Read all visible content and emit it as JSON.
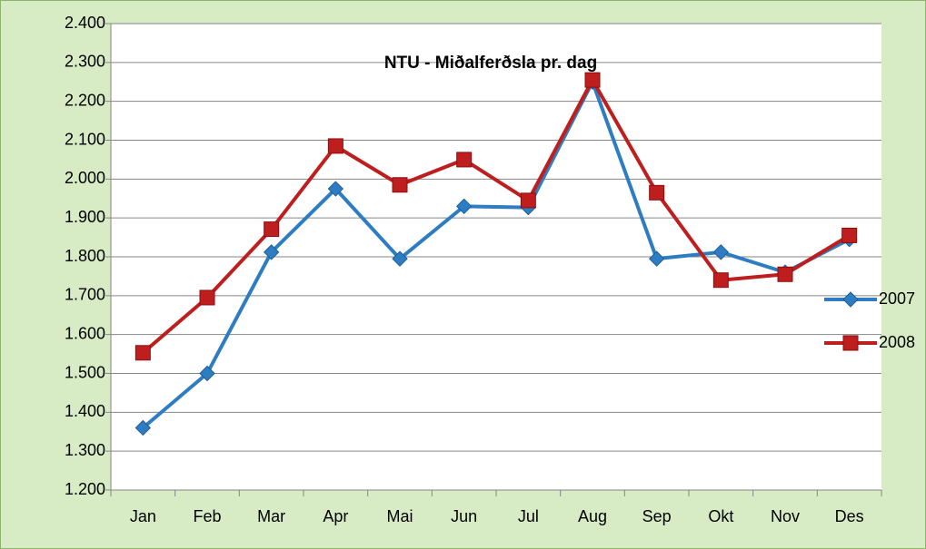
{
  "chart_data": {
    "type": "line",
    "title": "NTU - Miðalferðsla pr. dag",
    "categories": [
      "Jan",
      "Feb",
      "Mar",
      "Apr",
      "Mai",
      "Jun",
      "Jul",
      "Aug",
      "Sep",
      "Okt",
      "Nov",
      "Des"
    ],
    "series": [
      {
        "name": "2007",
        "color": "#2e7dc2",
        "marker": "diamond",
        "values": [
          1360,
          1500,
          1812,
          1975,
          1795,
          1930,
          1927,
          2250,
          1795,
          1812,
          1760,
          1845
        ]
      },
      {
        "name": "2008",
        "color": "#be1e1e",
        "marker": "square",
        "values": [
          1553,
          1695,
          1871,
          2085,
          1985,
          2050,
          1945,
          2255,
          1965,
          1740,
          1755,
          1855
        ]
      }
    ],
    "ylim": [
      1200,
      2400
    ],
    "yticks": [
      {
        "value": 1200,
        "label": "1.200"
      },
      {
        "value": 1300,
        "label": "1.300"
      },
      {
        "value": 1400,
        "label": "1.400"
      },
      {
        "value": 1500,
        "label": "1.500"
      },
      {
        "value": 1600,
        "label": "1.600"
      },
      {
        "value": 1700,
        "label": "1.700"
      },
      {
        "value": 1800,
        "label": "1.800"
      },
      {
        "value": 1900,
        "label": "1.900"
      },
      {
        "value": 2000,
        "label": "2.000"
      },
      {
        "value": 2100,
        "label": "2.100"
      },
      {
        "value": 2200,
        "label": "2.200"
      },
      {
        "value": 2300,
        "label": "2.300"
      },
      {
        "value": 2400,
        "label": "2.400"
      }
    ],
    "grid": true,
    "legend": "right"
  }
}
